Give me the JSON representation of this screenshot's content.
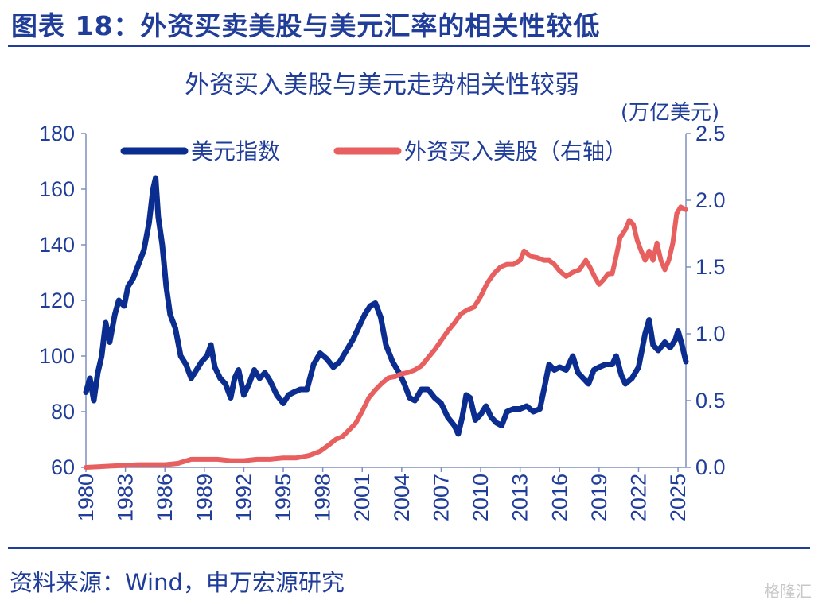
{
  "figure": {
    "title": "图表 18：外资买卖美股与美元汇率的相关性较低",
    "source": "资料来源：Wind，申万宏源研究",
    "watermark": "格隆汇"
  },
  "colors": {
    "usd": "#0a2d8f",
    "foreign": "#e85f5f",
    "text": "#1f3d99"
  },
  "chart_data": {
    "type": "line",
    "title": "外资买入美股与美元走势相关性较弱",
    "xlabel": "",
    "ylabel": "",
    "y2label": "(万亿美元)",
    "xlim": [
      1980,
      2025.6
    ],
    "ylim": [
      60,
      180
    ],
    "y2lim": [
      0,
      2.5
    ],
    "x_ticks": [
      1980,
      1983,
      1986,
      1989,
      1992,
      1995,
      1998,
      2001,
      2004,
      2007,
      2010,
      2013,
      2016,
      2019,
      2022,
      2025
    ],
    "y_ticks": [
      60,
      80,
      100,
      120,
      140,
      160,
      180
    ],
    "y2_ticks": [
      0.0,
      0.5,
      1.0,
      1.5,
      2.0,
      2.5
    ],
    "y2_tick_labels": [
      "0.0",
      "0.5",
      "1.0",
      "1.5",
      "2.0",
      "2.5"
    ],
    "legend": "top-left",
    "series": [
      {
        "name": "美元指数",
        "axis": "left",
        "x": [
          1980.0,
          1980.3,
          1980.6,
          1980.9,
          1981.2,
          1981.5,
          1981.8,
          1982.2,
          1982.5,
          1982.9,
          1983.2,
          1983.6,
          1984.0,
          1984.4,
          1984.8,
          1985.1,
          1985.3,
          1985.5,
          1985.8,
          1986.1,
          1986.4,
          1986.8,
          1987.2,
          1987.6,
          1988.0,
          1988.4,
          1988.8,
          1989.2,
          1989.5,
          1989.8,
          1990.2,
          1990.6,
          1991.0,
          1991.3,
          1991.6,
          1992.0,
          1992.4,
          1992.8,
          1993.2,
          1993.6,
          1994.0,
          1994.5,
          1995.0,
          1995.4,
          1995.8,
          1996.3,
          1996.8,
          1997.3,
          1997.8,
          1998.3,
          1998.8,
          1999.3,
          1999.8,
          2000.3,
          2000.8,
          2001.2,
          2001.6,
          2002.0,
          2002.4,
          2002.8,
          2003.3,
          2003.8,
          2004.2,
          2004.6,
          2005.0,
          2005.5,
          2006.0,
          2006.5,
          2007.0,
          2007.5,
          2008.0,
          2008.3,
          2008.6,
          2008.9,
          2009.2,
          2009.6,
          2010.0,
          2010.4,
          2010.8,
          2011.2,
          2011.6,
          2012.0,
          2012.5,
          2013.0,
          2013.5,
          2014.0,
          2014.5,
          2014.9,
          2015.2,
          2015.6,
          2016.0,
          2016.5,
          2017.0,
          2017.4,
          2017.8,
          2018.2,
          2018.6,
          2019.0,
          2019.5,
          2020.0,
          2020.3,
          2020.7,
          2021.0,
          2021.5,
          2022.0,
          2022.5,
          2022.8,
          2023.1,
          2023.5,
          2024.0,
          2024.4,
          2024.8,
          2025.0,
          2025.3,
          2025.6
        ],
        "y": [
          87,
          92,
          84,
          94,
          100,
          112,
          105,
          115,
          120,
          118,
          125,
          128,
          133,
          138,
          148,
          160,
          164,
          150,
          140,
          125,
          115,
          110,
          100,
          97,
          92,
          95,
          98,
          100,
          104,
          96,
          92,
          90,
          85,
          92,
          95,
          86,
          90,
          95,
          92,
          94,
          91,
          86,
          83,
          86,
          87,
          88,
          88,
          97,
          101,
          99,
          96,
          98,
          102,
          106,
          111,
          115,
          118,
          119,
          114,
          104,
          98,
          94,
          90,
          85,
          84,
          88,
          88,
          85,
          83,
          78,
          75,
          72,
          78,
          86,
          85,
          77,
          79,
          82,
          78,
          76,
          75,
          80,
          81,
          81,
          82,
          80,
          81,
          90,
          97,
          95,
          96,
          95,
          100,
          94,
          92,
          90,
          95,
          96,
          97,
          97,
          100,
          93,
          90,
          92,
          96,
          108,
          113,
          104,
          102,
          105,
          103,
          106,
          109,
          104,
          98
        ]
      },
      {
        "name": "外资买入美股（右轴）",
        "axis": "right",
        "x": [
          1980.0,
          1982.0,
          1984.0,
          1986.0,
          1987.0,
          1988.0,
          1989.0,
          1990.0,
          1991.0,
          1992.0,
          1993.0,
          1994.0,
          1995.0,
          1996.0,
          1997.0,
          1997.8,
          1998.5,
          1999.0,
          1999.5,
          2000.0,
          2000.5,
          2001.0,
          2001.5,
          2002.0,
          2002.5,
          2003.0,
          2003.5,
          2004.0,
          2004.5,
          2005.0,
          2005.5,
          2006.0,
          2006.5,
          2007.0,
          2007.5,
          2008.0,
          2008.5,
          2009.0,
          2009.5,
          2010.0,
          2010.5,
          2011.0,
          2011.5,
          2012.0,
          2012.5,
          2013.0,
          2013.3,
          2013.8,
          2014.3,
          2014.8,
          2015.2,
          2015.6,
          2016.0,
          2016.5,
          2017.0,
          2017.5,
          2018.0,
          2018.3,
          2018.7,
          2019.0,
          2019.3,
          2019.7,
          2020.0,
          2020.3,
          2020.6,
          2021.0,
          2021.3,
          2021.6,
          2021.9,
          2022.2,
          2022.5,
          2022.8,
          2023.1,
          2023.4,
          2023.7,
          2024.0,
          2024.3,
          2024.6,
          2024.9,
          2025.2,
          2025.6
        ],
        "y": [
          0.0,
          0.01,
          0.02,
          0.02,
          0.03,
          0.06,
          0.06,
          0.06,
          0.05,
          0.05,
          0.06,
          0.06,
          0.07,
          0.07,
          0.09,
          0.12,
          0.17,
          0.21,
          0.23,
          0.28,
          0.33,
          0.42,
          0.52,
          0.58,
          0.63,
          0.67,
          0.68,
          0.7,
          0.71,
          0.73,
          0.76,
          0.82,
          0.88,
          0.95,
          1.02,
          1.08,
          1.15,
          1.18,
          1.2,
          1.28,
          1.38,
          1.45,
          1.5,
          1.52,
          1.52,
          1.55,
          1.62,
          1.58,
          1.57,
          1.55,
          1.55,
          1.52,
          1.47,
          1.43,
          1.46,
          1.48,
          1.55,
          1.5,
          1.42,
          1.37,
          1.4,
          1.45,
          1.45,
          1.58,
          1.72,
          1.78,
          1.85,
          1.82,
          1.7,
          1.62,
          1.55,
          1.62,
          1.55,
          1.68,
          1.55,
          1.48,
          1.55,
          1.68,
          1.9,
          1.95,
          1.93
        ]
      }
    ]
  }
}
